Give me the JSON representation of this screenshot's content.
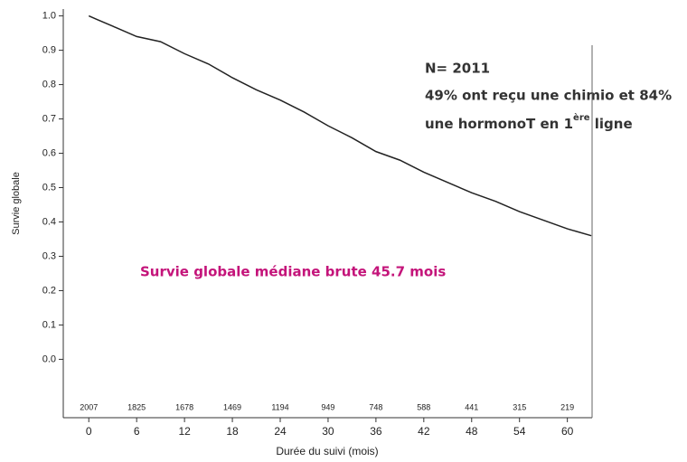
{
  "chart_data": {
    "type": "line",
    "x": [
      0,
      1,
      3,
      6,
      9,
      12,
      15,
      18,
      21,
      24,
      27,
      30,
      33,
      36,
      39,
      42,
      45,
      48,
      51,
      54,
      57,
      60,
      63
    ],
    "values": [
      1.0,
      0.99,
      0.97,
      0.94,
      0.925,
      0.89,
      0.86,
      0.82,
      0.785,
      0.755,
      0.72,
      0.68,
      0.645,
      0.605,
      0.58,
      0.545,
      0.515,
      0.485,
      0.46,
      0.43,
      0.405,
      0.38,
      0.36
    ],
    "color": "#222222",
    "xlim": [
      -3.2,
      63.1
    ],
    "ylim": [
      -0.17,
      1.02
    ],
    "xticks": [
      0,
      6,
      12,
      18,
      24,
      30,
      36,
      42,
      48,
      54,
      60
    ],
    "yticks": [
      {
        "value": 1,
        "label": "1.0"
      },
      0.9,
      0.8,
      0.7,
      0.6,
      0.5,
      0.4,
      0.3,
      0.2,
      0.1,
      {
        "value": 0,
        "label": "0.0"
      }
    ],
    "at_risk": [
      2007,
      1825,
      1678,
      1469,
      1194,
      949,
      748,
      588,
      441,
      315,
      219
    ],
    "xlabel": "Durée du suivi (mois)",
    "ylabel": "Survie globale",
    "annotations": {
      "n": "N= 2011",
      "line1": "49% ont reçu une chimio et 84%",
      "line2": "une hormonoT en 1",
      "sup": "ère",
      "line2_end": " ligne",
      "median": "Survie globale médiane brute 45.7 mois"
    }
  }
}
